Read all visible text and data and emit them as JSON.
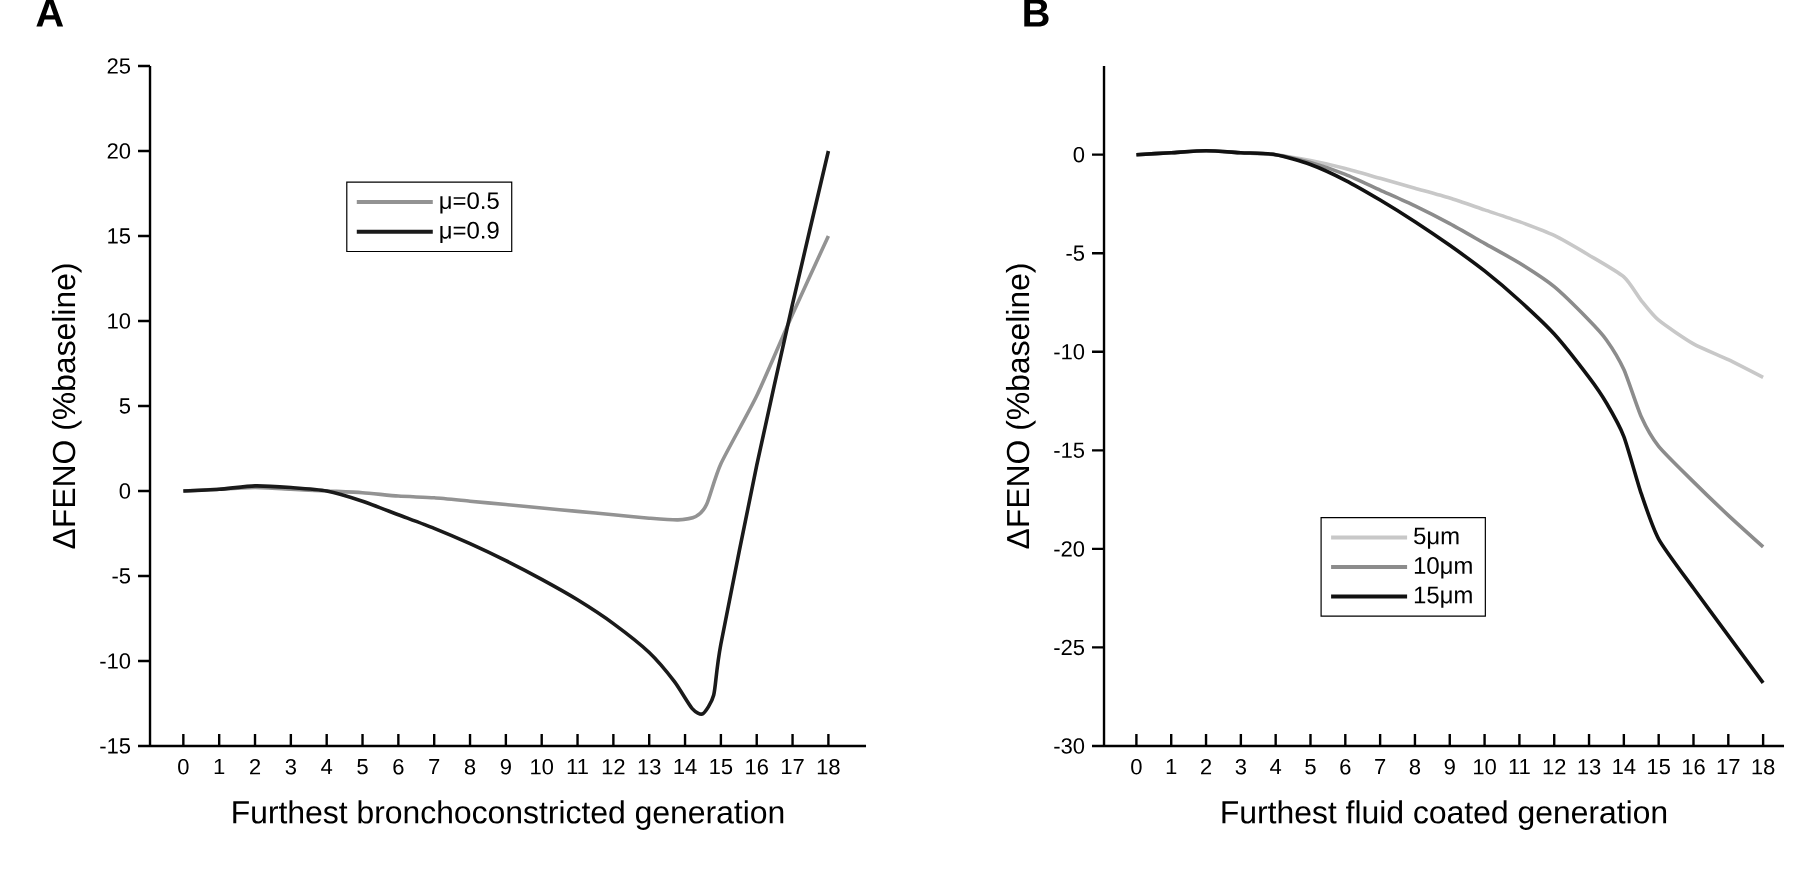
{
  "chart_data": [
    {
      "type": "line",
      "title": "A",
      "xlabel": "Furthest bronchoconstricted generation",
      "ylabel": "ΔFENO (%baseline)",
      "xlim": [
        -0.93,
        19.05
      ],
      "ylim": [
        -15,
        25
      ],
      "xticks": [
        0,
        1,
        2,
        3,
        4,
        5,
        6,
        7,
        8,
        9,
        10,
        11,
        12,
        13,
        14,
        15,
        16,
        17,
        18
      ],
      "yticks": [
        -15,
        -10,
        -5,
        0,
        5,
        10,
        15,
        20,
        25
      ],
      "legend": "top",
      "grid": false,
      "marker": "none",
      "line_style": "solid",
      "series": [
        {
          "name": "μ=0.5",
          "color": "#939393",
          "x": [
            0,
            1,
            2,
            3,
            4,
            5,
            6,
            7,
            8,
            9,
            10,
            11,
            12,
            13,
            13.8,
            14.3,
            14.6,
            15,
            16,
            17,
            18
          ],
          "values": [
            0,
            0.1,
            0.2,
            0.1,
            0,
            -0.1,
            -0.3,
            -0.4,
            -0.6,
            -0.8,
            -1.0,
            -1.2,
            -1.4,
            -1.6,
            -1.7,
            -1.5,
            -0.8,
            1.6,
            5.6,
            10.4,
            15
          ]
        },
        {
          "name": "μ=0.9",
          "color": "#1a1a1a",
          "x": [
            0,
            1,
            2,
            3,
            4,
            5,
            6,
            7,
            8,
            9,
            10,
            11,
            12,
            13,
            13.7,
            14.2,
            14.5,
            14.8,
            15,
            16,
            17,
            18
          ],
          "values": [
            0,
            0.1,
            0.3,
            0.2,
            0,
            -0.6,
            -1.4,
            -2.2,
            -3.1,
            -4.1,
            -5.2,
            -6.4,
            -7.8,
            -9.5,
            -11.2,
            -12.8,
            -13.1,
            -12,
            -9,
            1.5,
            11,
            20
          ]
        }
      ]
    },
    {
      "type": "line",
      "title": "B",
      "xlabel": "Furthest fluid coated generation",
      "ylabel": "ΔFENO (%baseline)",
      "xlim": [
        -0.93,
        18.6
      ],
      "ylim": [
        -30,
        4.5
      ],
      "xticks": [
        0,
        1,
        2,
        3,
        4,
        5,
        6,
        7,
        8,
        9,
        10,
        11,
        12,
        13,
        14,
        15,
        16,
        17,
        18
      ],
      "yticks": [
        -30,
        -25,
        -20,
        -15,
        -10,
        -5,
        0
      ],
      "legend": "bottom",
      "grid": false,
      "marker": "none",
      "line_style": "solid",
      "series": [
        {
          "name": "5μm",
          "color": "#c8c8c8",
          "x": [
            0,
            1,
            2,
            3,
            4,
            5,
            6,
            7,
            8,
            9,
            10,
            11,
            12,
            13,
            14,
            14.5,
            15,
            16,
            17,
            18
          ],
          "values": [
            0,
            0.1,
            0.2,
            0.1,
            0,
            -0.3,
            -0.7,
            -1.2,
            -1.7,
            -2.2,
            -2.8,
            -3.4,
            -4.1,
            -5.1,
            -6.2,
            -7.4,
            -8.4,
            -9.6,
            -10.4,
            -11.3
          ]
        },
        {
          "name": "10μm",
          "color": "#8c8c8c",
          "x": [
            0,
            1,
            2,
            3,
            4,
            5,
            6,
            7,
            8,
            9,
            10,
            11,
            12,
            13,
            13.5,
            14,
            14.5,
            15,
            16,
            17,
            18
          ],
          "values": [
            0,
            0.1,
            0.2,
            0.1,
            0,
            -0.4,
            -1.0,
            -1.8,
            -2.6,
            -3.5,
            -4.5,
            -5.5,
            -6.7,
            -8.4,
            -9.4,
            -10.9,
            -13.3,
            -14.8,
            -16.6,
            -18.3,
            -19.9
          ]
        },
        {
          "name": "15μm",
          "color": "#111111",
          "x": [
            0,
            1,
            2,
            3,
            4,
            5,
            6,
            7,
            8,
            9,
            10,
            11,
            12,
            13,
            13.5,
            14,
            14.5,
            15,
            16,
            17,
            18
          ],
          "values": [
            0,
            0.1,
            0.2,
            0.1,
            0,
            -0.5,
            -1.3,
            -2.3,
            -3.4,
            -4.6,
            -5.9,
            -7.4,
            -9.1,
            -11.3,
            -12.6,
            -14.3,
            -17.2,
            -19.5,
            -22,
            -24.4,
            -26.8
          ]
        }
      ]
    }
  ]
}
